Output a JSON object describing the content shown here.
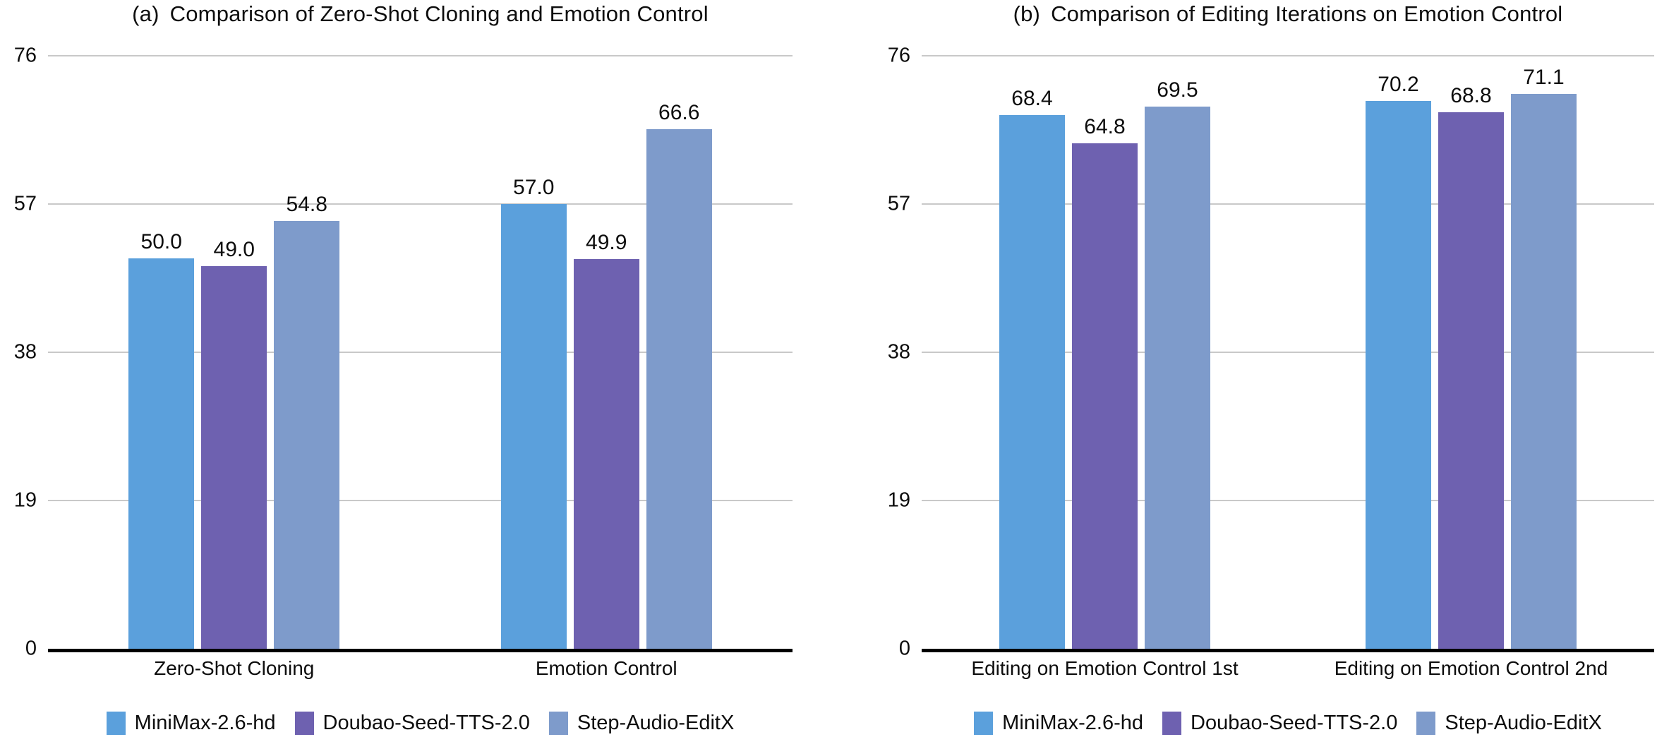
{
  "page": {
    "background": "#ffffff",
    "grid_color": "#c9c9c9",
    "axis_color": "#000000"
  },
  "chart_data": [
    {
      "type": "bar",
      "title_prefix": "(a)",
      "title": "Comparison of Zero-Shot Cloning and Emotion Control",
      "categories": [
        "Zero-Shot Cloning",
        "Emotion Control"
      ],
      "series": [
        {
          "name": "MiniMax-2.6-hd",
          "color": "#5ba0dc",
          "values": [
            50.0,
            57.0
          ]
        },
        {
          "name": "Doubao-Seed-TTS-2.0",
          "color": "#6e61b0",
          "values": [
            49.0,
            49.9
          ]
        },
        {
          "name": "Step-Audio-EditX",
          "color": "#7e9bcb",
          "values": [
            54.8,
            66.6
          ]
        }
      ],
      "yticks": [
        0,
        19,
        38,
        57,
        76
      ],
      "ylim": [
        0,
        76
      ],
      "grid": true,
      "legend_position": "bottom",
      "value_label_decimals": 1
    },
    {
      "type": "bar",
      "title_prefix": "(b)",
      "title": "Comparison of Editing Iterations on Emotion Control",
      "categories": [
        "Editing on Emotion Control 1st",
        "Editing on Emotion Control 2nd"
      ],
      "series": [
        {
          "name": "MiniMax-2.6-hd",
          "color": "#5ba0dc",
          "values": [
            68.4,
            70.2
          ]
        },
        {
          "name": "Doubao-Seed-TTS-2.0",
          "color": "#6e61b0",
          "values": [
            64.8,
            68.8
          ]
        },
        {
          "name": "Step-Audio-EditX",
          "color": "#7e9bcb",
          "values": [
            69.5,
            71.1
          ]
        }
      ],
      "yticks": [
        0,
        19,
        38,
        57,
        76
      ],
      "ylim": [
        0,
        76
      ],
      "grid": true,
      "legend_position": "bottom",
      "value_label_decimals": 1
    }
  ]
}
